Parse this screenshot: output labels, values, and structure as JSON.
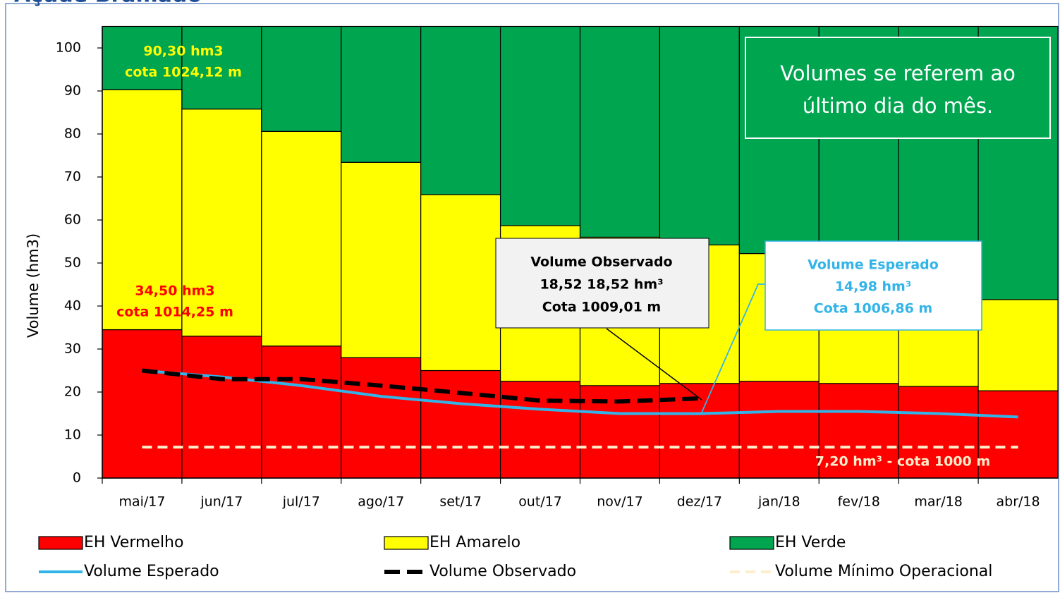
{
  "chart_data": {
    "type": "bar",
    "title": "Açude Bramado",
    "y_label": "Volume (hm3)",
    "categories": [
      "mai/17",
      "jun/17",
      "jul/17",
      "ago/17",
      "set/17",
      "out/17",
      "nov/17",
      "dez/17",
      "jan/18",
      "fev/18",
      "mar/18",
      "abr/18"
    ],
    "ylim": [
      0,
      105
    ],
    "yticks": [
      0,
      10,
      20,
      30,
      40,
      50,
      60,
      70,
      80,
      90,
      100
    ],
    "stacked": true,
    "series": [
      {
        "name": "EH Vermelho",
        "kind": "bar",
        "color": "#ff0000",
        "values": [
          34.5,
          33,
          30.7,
          28,
          25,
          22.5,
          21.5,
          22,
          22.5,
          22,
          21.3,
          20.3
        ]
      },
      {
        "name": "EH Amarelo",
        "kind": "bar",
        "color": "#ffff00",
        "values": [
          55.8,
          52.8,
          49.9,
          45.4,
          40.9,
          36.2,
          34.5,
          32.2,
          29.7,
          28,
          24.7,
          21.2
        ]
      },
      {
        "name": "EH Verde",
        "kind": "bar",
        "color": "#00a550",
        "values": [
          14.7,
          19.2,
          24.4,
          31.6,
          39.1,
          46.3,
          49,
          50.8,
          52.8,
          55,
          59,
          63.5
        ]
      },
      {
        "name": "Volume Esperado",
        "kind": "line",
        "style": "solid",
        "color": "#33b4e8",
        "values": [
          25,
          23.5,
          21.5,
          19,
          17.3,
          16,
          15,
          14.98,
          15.5,
          15.5,
          15,
          14.2
        ]
      },
      {
        "name": "Volume Observado",
        "kind": "line",
        "style": "dashed",
        "color": "#000000",
        "values": [
          25,
          23,
          23,
          21.5,
          19.8,
          18,
          17.8,
          18.52,
          null,
          null,
          null,
          null
        ]
      },
      {
        "name": "Volume Mínimo Operacional",
        "kind": "line",
        "style": "dashed",
        "color": "#fdeecb",
        "values": [
          7.2,
          7.2,
          7.2,
          7.2,
          7.2,
          7.2,
          7.2,
          7.2,
          7.2,
          7.2,
          7.2,
          7.2
        ]
      }
    ],
    "annotations": [
      {
        "lines": [
          "90,30  hm3",
          "cota 1024,12 m"
        ],
        "color": "#ffff00"
      },
      {
        "lines": [
          "34,50  hm3",
          "cota 1014,25 m"
        ],
        "color": "#ff0000"
      },
      {
        "lines": [
          "Volumes se referem ao",
          "último dia do mês."
        ],
        "color": "#ffffff"
      },
      {
        "lines": [
          "Volume Observado",
          "18,52 18,52 hm³",
          "Cota 1009,01 m"
        ],
        "color": "#000000"
      },
      {
        "lines": [
          "Volume Esperado",
          "14,98  hm³",
          "Cota 1006,86 m"
        ],
        "color": "#33b4e8"
      },
      {
        "lines": [
          "7,20 hm³ - cota 1000 m"
        ],
        "color": "#fdeecb"
      }
    ]
  }
}
